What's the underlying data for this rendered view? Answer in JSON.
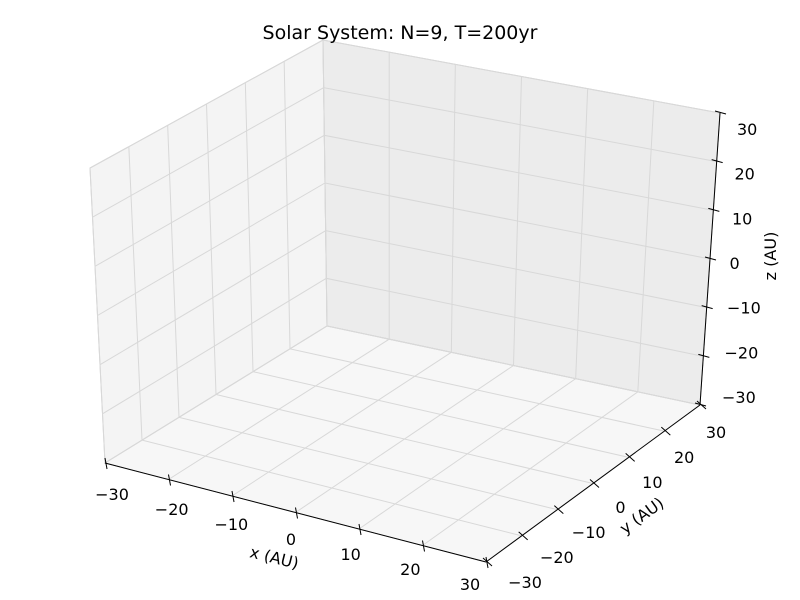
{
  "chart_data": {
    "type": "scatter",
    "projection": "3d",
    "title": "Solar System: N=9, T=200yr",
    "xlabel": "x (AU)",
    "ylabel": "y (AU)",
    "zlabel": "z (AU)",
    "xlim": [
      -30,
      30
    ],
    "ylim": [
      -30,
      30
    ],
    "zlim": [
      -30,
      30
    ],
    "xticks": [
      "−30",
      "−20",
      "−10",
      "0",
      "10",
      "20",
      "30"
    ],
    "yticks": [
      "−30",
      "−20",
      "−10",
      "0",
      "10",
      "20",
      "30"
    ],
    "zticks": [
      "−30",
      "−20",
      "−10",
      "0",
      "10",
      "20",
      "30"
    ],
    "grid": true,
    "series": []
  },
  "colors": {
    "pane_left": "#f4f4f4",
    "pane_right": "#ececec",
    "pane_floor": "#f7f7f7",
    "grid": "#d8d8d8",
    "pane_edge": "#d0d0d0"
  }
}
